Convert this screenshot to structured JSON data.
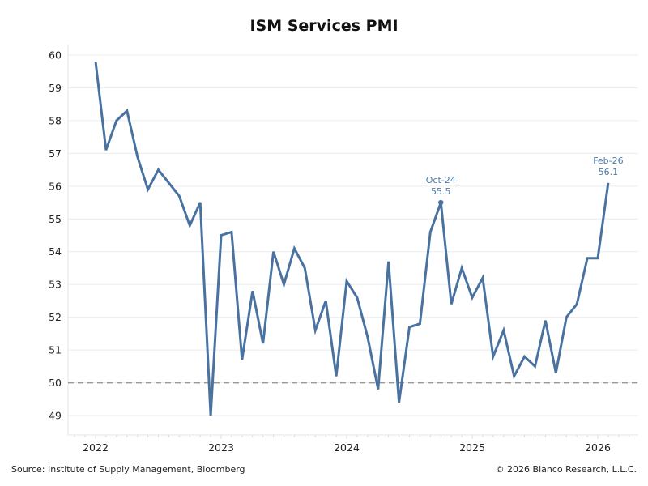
{
  "chart_data": {
    "type": "line",
    "title": "ISM Services PMI",
    "xlabel": "",
    "ylabel": "",
    "ylim": [
      48.6,
      60.2
    ],
    "yticks": [
      49,
      50,
      51,
      52,
      53,
      54,
      55,
      56,
      57,
      58,
      59,
      60
    ],
    "xticks": [
      "2022",
      "2023",
      "2024",
      "2025",
      "2026"
    ],
    "reference_line": {
      "value": 50,
      "style": "dashed",
      "color": "#9a9a9a"
    },
    "grid": true,
    "start": "Jan-22",
    "frequency": "monthly",
    "series": [
      {
        "name": "ISM Services PMI",
        "color": "#4a72a0",
        "x": [
          "Jan-22",
          "Feb-22",
          "Mar-22",
          "Apr-22",
          "May-22",
          "Jun-22",
          "Jul-22",
          "Aug-22",
          "Sep-22",
          "Oct-22",
          "Nov-22",
          "Dec-22",
          "Jan-23",
          "Feb-23",
          "Mar-23",
          "Apr-23",
          "May-23",
          "Jun-23",
          "Jul-23",
          "Aug-23",
          "Sep-23",
          "Oct-23",
          "Nov-23",
          "Dec-23",
          "Jan-24",
          "Feb-24",
          "Mar-24",
          "Apr-24",
          "May-24",
          "Jun-24",
          "Jul-24",
          "Aug-24",
          "Sep-24",
          "Oct-24",
          "Nov-24",
          "Dec-24",
          "Jan-25",
          "Feb-25",
          "Mar-25",
          "Apr-25",
          "May-25",
          "Jun-25",
          "Jul-25",
          "Aug-25",
          "Sep-25",
          "Oct-25",
          "Nov-25",
          "Dec-25",
          "Jan-26",
          "Feb-26"
        ],
        "values": [
          59.8,
          57.1,
          58.0,
          58.3,
          56.9,
          55.9,
          56.5,
          56.1,
          55.7,
          54.8,
          55.5,
          49.0,
          54.5,
          54.6,
          50.7,
          52.8,
          51.2,
          54.0,
          53.0,
          54.1,
          53.5,
          51.6,
          52.5,
          50.2,
          53.1,
          52.6,
          51.4,
          49.8,
          53.7,
          49.4,
          51.7,
          51.8,
          54.6,
          55.5,
          52.4,
          53.5,
          52.6,
          53.2,
          50.8,
          51.6,
          50.2,
          50.8,
          50.5,
          51.9,
          50.3,
          52.0,
          52.4,
          53.8,
          53.8,
          56.1
        ]
      }
    ],
    "annotations": [
      {
        "x": "Oct-24",
        "label": "Oct-24",
        "value_label": "55.5",
        "value": 55.5
      },
      {
        "x": "Feb-26",
        "label": "Feb-26",
        "value_label": "56.1",
        "value": 56.1
      }
    ]
  },
  "footer": {
    "source": "Source: Institute of Supply Management, Bloomberg",
    "copyright": "© 2026 Bianco Research, L.L.C."
  }
}
